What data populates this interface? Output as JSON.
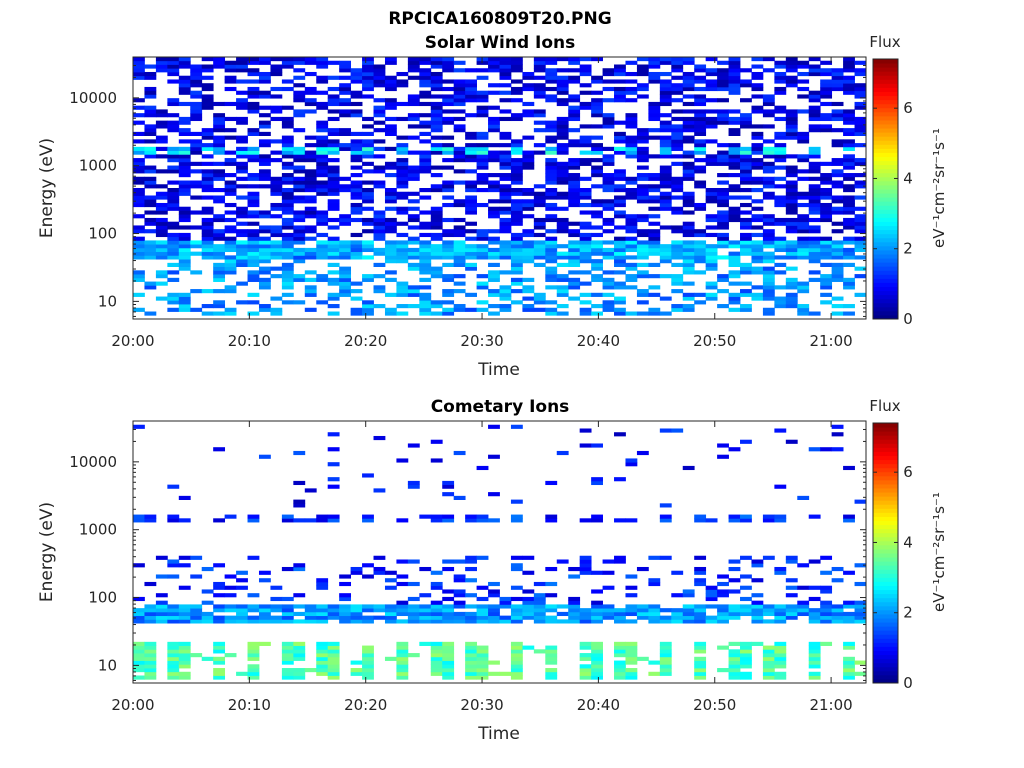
{
  "figure": {
    "title": "RPCICA160809T20.PNG"
  },
  "colorbar": {
    "title": "Flux",
    "label": "eV⁻¹cm⁻²sr⁻¹s⁻¹",
    "range": [
      0,
      7.4
    ],
    "ticks": [
      "0",
      "2",
      "4",
      "6"
    ],
    "colormap": "jet"
  },
  "chart_data": [
    {
      "type": "heatmap",
      "title": "Solar Wind Ions",
      "xlabel": "Time",
      "ylabel": "Energy (eV)",
      "yscale": "log",
      "ylim": [
        5.5,
        40000
      ],
      "xlim": [
        "20:00",
        "21:03"
      ],
      "xticks": [
        "20:00",
        "20:10",
        "20:20",
        "20:30",
        "20:40",
        "20:50",
        "21:00"
      ],
      "yticks": [
        "10",
        "100",
        "1000",
        "10000"
      ],
      "bands": [
        {
          "energy_range": [
            6,
            60
          ],
          "typical_flux": 2.0,
          "coverage": "patchy"
        },
        {
          "energy_range": [
            40,
            75
          ],
          "typical_flux": 2.2,
          "coverage": "continuous band"
        },
        {
          "energy_range": [
            75,
            40000
          ],
          "typical_flux": 0.8,
          "coverage": "dense speckle"
        },
        {
          "energy_range": [
            1400,
            1800
          ],
          "typical_flux": 2.6,
          "coverage": "periodic blocks"
        }
      ]
    },
    {
      "type": "heatmap",
      "title": "Cometary Ions",
      "xlabel": "Time",
      "ylabel": "Energy (eV)",
      "yscale": "log",
      "ylim": [
        5.5,
        40000
      ],
      "xlim": [
        "20:00",
        "21:03"
      ],
      "xticks": [
        "20:00",
        "20:10",
        "20:20",
        "20:30",
        "20:40",
        "20:50",
        "21:00"
      ],
      "yticks": [
        "10",
        "100",
        "1000",
        "10000"
      ],
      "bands": [
        {
          "energy_range": [
            6,
            22
          ],
          "typical_flux": 3.3,
          "coverage": "periodic blocks"
        },
        {
          "energy_range": [
            40,
            75
          ],
          "typical_flux": 2.0,
          "coverage": "continuous band"
        },
        {
          "energy_range": [
            75,
            400
          ],
          "typical_flux": 1.2,
          "coverage": "scattered"
        },
        {
          "energy_range": [
            1300,
            1700
          ],
          "typical_flux": 1.2,
          "coverage": "periodic blocks"
        },
        {
          "energy_range": [
            2000,
            35000
          ],
          "typical_flux": 1.0,
          "coverage": "sparse"
        }
      ]
    }
  ]
}
